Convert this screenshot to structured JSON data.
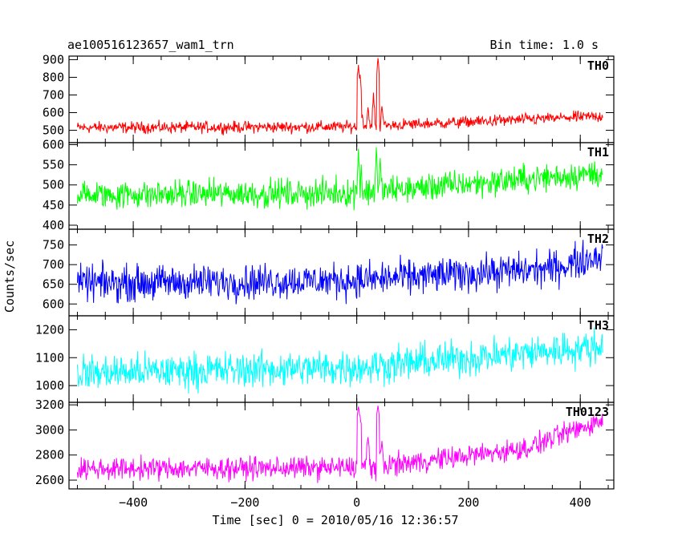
{
  "header": {
    "title": "ae100516123657_wam1_trn",
    "bin_time": "Bin time: 1.0 s"
  },
  "chart_data": {
    "type": "line",
    "layout": "stacked-panels",
    "title": "ae100516123657_wam1_trn",
    "subtitle": "Bin time: 1.0 s",
    "xlabel": "Time [sec] 0 = 2010/05/16 12:36:57",
    "ylabel": "Counts/sec",
    "xlim": [
      -515,
      460
    ],
    "x_data_range": [
      -500,
      440
    ],
    "bin_time_s": 1.0,
    "x_ticks": [
      -400,
      -200,
      0,
      200,
      400
    ],
    "x_tick_labels": [
      "−400",
      "−200",
      "0",
      "200",
      "400"
    ],
    "grid": false,
    "legend": "none",
    "panels": [
      {
        "name": "TH0",
        "color": "#ff0000",
        "ylim": [
          430,
          920
        ],
        "y_ticks": [
          500,
          600,
          700,
          800,
          900
        ],
        "y_tick_labels": [
          "500",
          "600",
          "700",
          "800",
          "900"
        ],
        "baseline": [
          [
            -500,
            515
          ],
          [
            0,
            520
          ],
          [
            440,
            580
          ]
        ],
        "noise_amplitude": 28,
        "spikes": [
          [
            3,
            880
          ],
          [
            6,
            820
          ],
          [
            10,
            600
          ],
          [
            20,
            640
          ],
          [
            30,
            700
          ],
          [
            38,
            910
          ],
          [
            45,
            650
          ]
        ]
      },
      {
        "name": "TH1",
        "color": "#00ff00",
        "ylim": [
          390,
          605
        ],
        "y_ticks": [
          400,
          450,
          500,
          550,
          600
        ],
        "y_tick_labels": [
          "400",
          "450",
          "500",
          "550",
          "600"
        ],
        "baseline": [
          [
            -500,
            475
          ],
          [
            0,
            480
          ],
          [
            440,
            530
          ]
        ],
        "noise_amplitude": 30,
        "spikes": [
          [
            3,
            600
          ],
          [
            8,
            560
          ],
          [
            35,
            600
          ],
          [
            42,
            580
          ]
        ]
      },
      {
        "name": "TH2",
        "color": "#0000ff",
        "ylim": [
          570,
          790
        ],
        "y_ticks": [
          600,
          650,
          700,
          750
        ],
        "y_tick_labels": [
          "600",
          "650",
          "700",
          "750"
        ],
        "baseline": [
          [
            -500,
            652
          ],
          [
            0,
            660
          ],
          [
            350,
            690
          ],
          [
            440,
            725
          ]
        ],
        "noise_amplitude": 38,
        "spikes": []
      },
      {
        "name": "TH3",
        "color": "#00ffff",
        "ylim": [
          940,
          1250
        ],
        "y_ticks": [
          1000,
          1100,
          1200
        ],
        "y_tick_labels": [
          "1000",
          "1100",
          "1200"
        ],
        "baseline": [
          [
            -500,
            1045
          ],
          [
            0,
            1065
          ],
          [
            440,
            1140
          ]
        ],
        "noise_amplitude": 55,
        "spikes": []
      },
      {
        "name": "TH0123",
        "color": "#ff00ff",
        "ylim": [
          2530,
          3220
        ],
        "y_ticks": [
          2600,
          2800,
          3000,
          3200
        ],
        "y_tick_labels": [
          "2600",
          "2800",
          "3000",
          "3200"
        ],
        "baseline": [
          [
            -500,
            2690
          ],
          [
            0,
            2700
          ],
          [
            100,
            2740
          ],
          [
            300,
            2850
          ],
          [
            440,
            3080
          ]
        ],
        "noise_amplitude": 75,
        "spikes": [
          [
            3,
            3200
          ],
          [
            6,
            3120
          ],
          [
            20,
            2950
          ],
          [
            38,
            3200
          ],
          [
            45,
            2900
          ]
        ]
      }
    ]
  }
}
